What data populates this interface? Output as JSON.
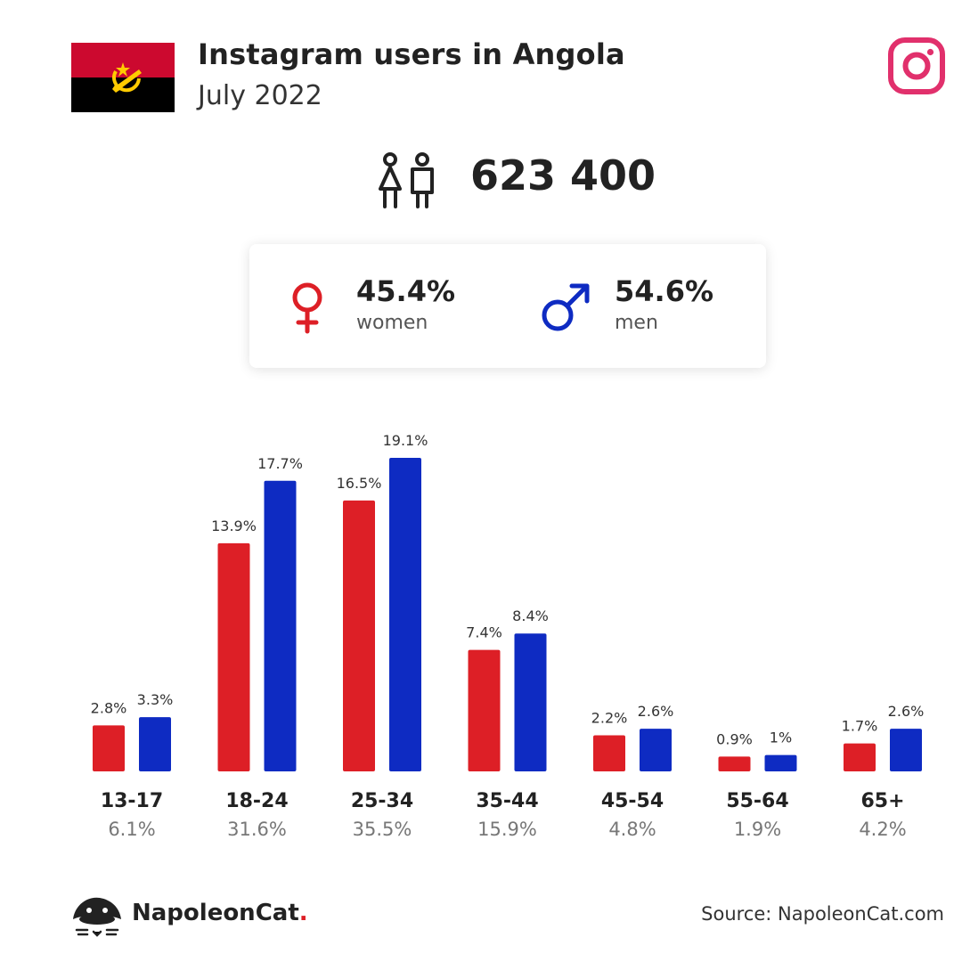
{
  "header": {
    "title": "Instagram users in Angola",
    "subtitle": "July 2022",
    "flag_icon": "angola-flag-icon",
    "platform_icon": "instagram-icon"
  },
  "summary": {
    "total": "623 400",
    "users_icon": "users-icon",
    "women": {
      "percent": "45.4%",
      "label": "women",
      "icon": "female-symbol-icon"
    },
    "men": {
      "percent": "54.6%",
      "label": "men",
      "icon": "male-symbol-icon"
    }
  },
  "colors": {
    "women": "#dd1f26",
    "men": "#0e2bc2",
    "instagram": "#e1306c",
    "flag_red": "#cc092f",
    "flag_black": "#000000",
    "flag_yellow": "#ffcb00"
  },
  "chart_data": {
    "type": "bar",
    "categories": [
      "13-17",
      "18-24",
      "25-34",
      "35-44",
      "45-54",
      "55-64",
      "65+"
    ],
    "category_totals": [
      "6.1%",
      "31.6%",
      "35.5%",
      "15.9%",
      "4.8%",
      "1.9%",
      "4.2%"
    ],
    "series": [
      {
        "name": "women",
        "values": [
          2.8,
          13.9,
          16.5,
          7.4,
          2.2,
          0.9,
          1.7
        ],
        "labels": [
          "2.8%",
          "13.9%",
          "16.5%",
          "7.4%",
          "2.2%",
          "0.9%",
          "1.7%"
        ]
      },
      {
        "name": "men",
        "values": [
          3.3,
          17.7,
          19.1,
          8.4,
          2.6,
          1.0,
          2.6
        ],
        "labels": [
          "3.3%",
          "17.7%",
          "19.1%",
          "8.4%",
          "2.6%",
          "1%",
          "2.6%"
        ]
      }
    ],
    "ylim": [
      0,
      19.1
    ],
    "grid": false
  },
  "footer": {
    "brand_name": "NapoleonCat",
    "brand_dot": ".",
    "brand_icon": "napoleoncat-logo-icon",
    "source": "Source: NapoleonCat.com"
  }
}
